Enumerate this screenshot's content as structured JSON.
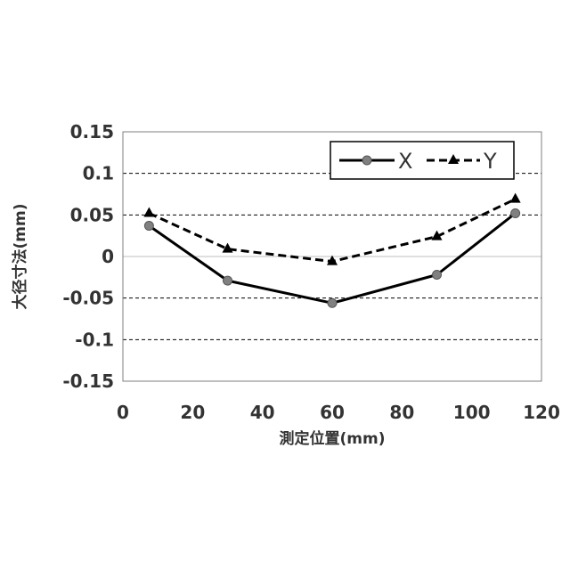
{
  "chart_data": {
    "type": "line",
    "xlabel": "測定位置(mm)",
    "ylabel": "大径寸法(mm)",
    "xlim": [
      0,
      120
    ],
    "ylim": [
      -0.15,
      0.15
    ],
    "x_ticks": [
      0,
      20,
      40,
      60,
      80,
      100,
      120
    ],
    "y_ticks": [
      -0.15,
      -0.1,
      -0.05,
      0,
      0.05,
      0.1,
      0.15
    ],
    "x_tick_labels": [
      "0",
      "20",
      "40",
      "60",
      "80",
      "100",
      "120"
    ],
    "y_tick_labels": [
      "-0.15",
      "-0.1",
      "-0.05",
      "0",
      "0.05",
      "0.1",
      "0.15"
    ],
    "grid": "horizontal dashed",
    "legend_position": "top-right",
    "series": [
      {
        "name": "X",
        "x": [
          7.5,
          30,
          60,
          90,
          112.5
        ],
        "values": [
          0.037,
          -0.029,
          -0.056,
          -0.022,
          0.052
        ],
        "color": "#000000",
        "line_style": "solid",
        "marker": "circle",
        "marker_color": "#808080"
      },
      {
        "name": "Y",
        "x": [
          7.5,
          30,
          60,
          90,
          112.5
        ],
        "values": [
          0.052,
          0.009,
          -0.006,
          0.024,
          0.069
        ],
        "color": "#000000",
        "line_style": "dashed",
        "marker": "triangle",
        "marker_color": "#000000"
      }
    ]
  }
}
